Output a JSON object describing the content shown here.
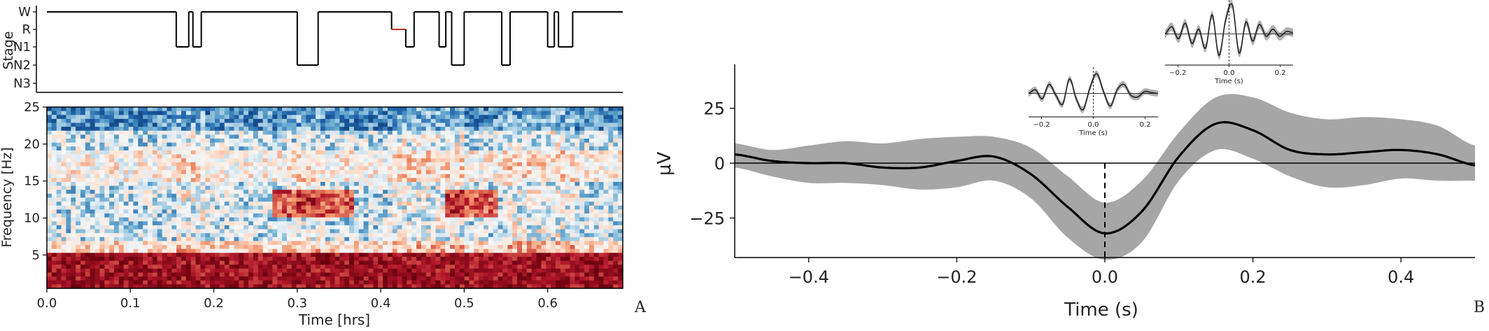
{
  "chart_data": [
    {
      "type": "line",
      "panel": "hypnogram",
      "ylabel": "Stage",
      "y_categories": [
        "W",
        "R",
        "N1",
        "N2",
        "N3"
      ],
      "xlim": [
        0.0,
        0.69
      ],
      "highlight_color": "#d62728",
      "line_color": "#000000",
      "stages": [
        [
          0.0,
          0
        ],
        [
          0.155,
          2
        ],
        [
          0.17,
          0
        ],
        [
          0.175,
          2
        ],
        [
          0.185,
          0
        ],
        [
          0.3,
          3
        ],
        [
          0.325,
          0
        ],
        [
          0.413,
          1
        ],
        [
          0.43,
          2
        ],
        [
          0.44,
          0
        ],
        [
          0.47,
          2
        ],
        [
          0.478,
          0
        ],
        [
          0.485,
          3
        ],
        [
          0.5,
          0
        ],
        [
          0.545,
          3
        ],
        [
          0.555,
          0
        ],
        [
          0.6,
          2
        ],
        [
          0.608,
          0
        ],
        [
          0.613,
          2
        ],
        [
          0.63,
          0
        ],
        [
          0.69,
          0
        ]
      ]
    },
    {
      "type": "heatmap",
      "panel": "spectrogram",
      "xlabel": "Time [hrs]",
      "ylabel": "Frequency [Hz]",
      "xlim": [
        0.0,
        0.69
      ],
      "ylim": [
        0.5,
        25
      ],
      "xticks": [
        "0.0",
        "0.1",
        "0.2",
        "0.3",
        "0.4",
        "0.5",
        "0.6"
      ],
      "yticks": [
        "5",
        "10",
        "15",
        "20",
        "25"
      ],
      "colormap": [
        "#08306b",
        "#2166ac",
        "#67a9cf",
        "#d1e5f0",
        "#f7f7f7",
        "#fddbc7",
        "#ef8a62",
        "#b2182b",
        "#67000d"
      ],
      "panel_label": "A"
    },
    {
      "type": "line",
      "panel": "average-waveform",
      "xlabel": "Time (s)",
      "ylabel": "μV",
      "xlim": [
        -0.5,
        0.5
      ],
      "ylim": [
        -43,
        45
      ],
      "xticks": [
        "−0.4",
        "−0.2",
        "0.0",
        "0.2",
        "0.4"
      ],
      "yticks": [
        "−25",
        "0",
        "25"
      ],
      "band_color": "#a6a6a6",
      "line_color": "#000000",
      "mean": {
        "x": [
          -0.5,
          -0.45,
          -0.4,
          -0.35,
          -0.3,
          -0.25,
          -0.2,
          -0.15,
          -0.1,
          -0.05,
          0.0,
          0.05,
          0.1,
          0.15,
          0.2,
          0.25,
          0.3,
          0.35,
          0.4,
          0.45,
          0.5
        ],
        "y": [
          4,
          1,
          0,
          0,
          -2,
          -2,
          1,
          3,
          -5,
          -20,
          -32,
          -22,
          3,
          18,
          15,
          6,
          4,
          5,
          6,
          4,
          -1
        ]
      },
      "band_upper": [
        9,
        6,
        8,
        10,
        9,
        11,
        12,
        12,
        7,
        -6,
        -18,
        -8,
        14,
        30,
        30,
        23,
        20,
        21,
        20,
        17,
        8
      ],
      "band_lower": [
        -2,
        -6,
        -9,
        -9,
        -10,
        -12,
        -11,
        -8,
        -16,
        -34,
        -44,
        -36,
        -8,
        6,
        2,
        -6,
        -11,
        -10,
        -7,
        -8,
        -8
      ],
      "panel_label": "B",
      "insets": [
        {
          "xlabel": "Time (s)",
          "xticks": [
            "−0.2",
            "0.0",
            "0.2"
          ],
          "xlim": [
            -0.25,
            0.25
          ],
          "trace": [
            0,
            0.4,
            -0.6,
            1,
            -0.2,
            -1.2,
            1.6,
            -0.6,
            -1.8,
            0.6,
            2.2,
            0.2,
            -1.4,
            0.4,
            1,
            -0.2,
            -0.4,
            0.2,
            0.1,
            0
          ]
        },
        {
          "xlabel": "Time (s)",
          "xticks": [
            "−0.2",
            "0.0",
            "0.2"
          ],
          "xlim": [
            -0.25,
            0.25
          ],
          "trace": [
            0,
            0.6,
            -0.4,
            0.9,
            -0.8,
            0.4,
            -1.2,
            1.6,
            -1.8,
            1.2,
            2.4,
            -1.6,
            1,
            -0.6,
            0.8,
            -0.2,
            0.4,
            -0.2,
            0.2,
            0.1
          ]
        }
      ]
    }
  ]
}
